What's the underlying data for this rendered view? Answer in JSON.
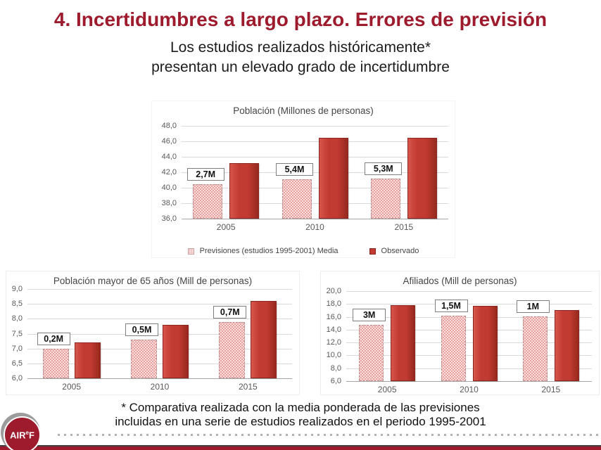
{
  "slide": {
    "title": "4. Incertidumbres a largo plazo. Errores de previsión",
    "subtitle_line1": "Los estudios realizados históricamente*",
    "subtitle_line2": "presentan un elevado grado de incertidumbre",
    "footnote_line1": "* Comparativa realizada con la media ponderada de las previsiones",
    "footnote_line2": "incluidas en una serie de estudios realizados en el periodo 1995-2001",
    "logo_text_pre": "AIR",
    "logo_text_sup": "e",
    "logo_text_post": "F"
  },
  "colors": {
    "accent_red": "#9e1b2e",
    "bar_observed": "#c23b32",
    "bar_forecast_base": "#f8dedd",
    "bar_forecast_dot": "#e49795",
    "gridline": "#d9d9d9"
  },
  "legend": {
    "forecast": "Previsiones (estudios 1995-2001) Media",
    "observed": "Observado"
  },
  "chart_data": [
    {
      "type": "bar",
      "title": "Población (Millones de personas)",
      "categories": [
        "2005",
        "2010",
        "2015"
      ],
      "series": [
        {
          "name": "Previsiones (estudios 1995-2001) Media",
          "values": [
            40.5,
            41.1,
            41.2
          ]
        },
        {
          "name": "Observado",
          "values": [
            43.2,
            46.5,
            46.5
          ]
        }
      ],
      "bar_labels": [
        "2,7M",
        "5,4M",
        "5,3M"
      ],
      "ylim": [
        36,
        48
      ],
      "ytick_step": 2,
      "grid": true,
      "legend_position": "bottom"
    },
    {
      "type": "bar",
      "title": "Población mayor de 65 años (Mill de personas)",
      "categories": [
        "2005",
        "2010",
        "2015"
      ],
      "series": [
        {
          "name": "Previsiones (estudios 1995-2001) Media",
          "values": [
            7.0,
            7.3,
            7.9
          ]
        },
        {
          "name": "Observado",
          "values": [
            7.2,
            7.8,
            8.6
          ]
        }
      ],
      "bar_labels": [
        "0,2M",
        "0,5M",
        "0,7M"
      ],
      "ylim": [
        6,
        9
      ],
      "ytick_step": 0.5,
      "grid": true,
      "legend_position": "none"
    },
    {
      "type": "bar",
      "title": "Afiliados (Mill de personas)",
      "categories": [
        "2005",
        "2010",
        "2015"
      ],
      "series": [
        {
          "name": "Previsiones (estudios 1995-2001) Media",
          "values": [
            14.8,
            16.2,
            16.1
          ]
        },
        {
          "name": "Observado",
          "values": [
            17.8,
            17.7,
            17.1
          ]
        }
      ],
      "bar_labels": [
        "3M",
        "1,5M",
        "1M"
      ],
      "ylim": [
        6,
        20
      ],
      "ytick_step": 2,
      "grid": true,
      "legend_position": "none"
    }
  ]
}
